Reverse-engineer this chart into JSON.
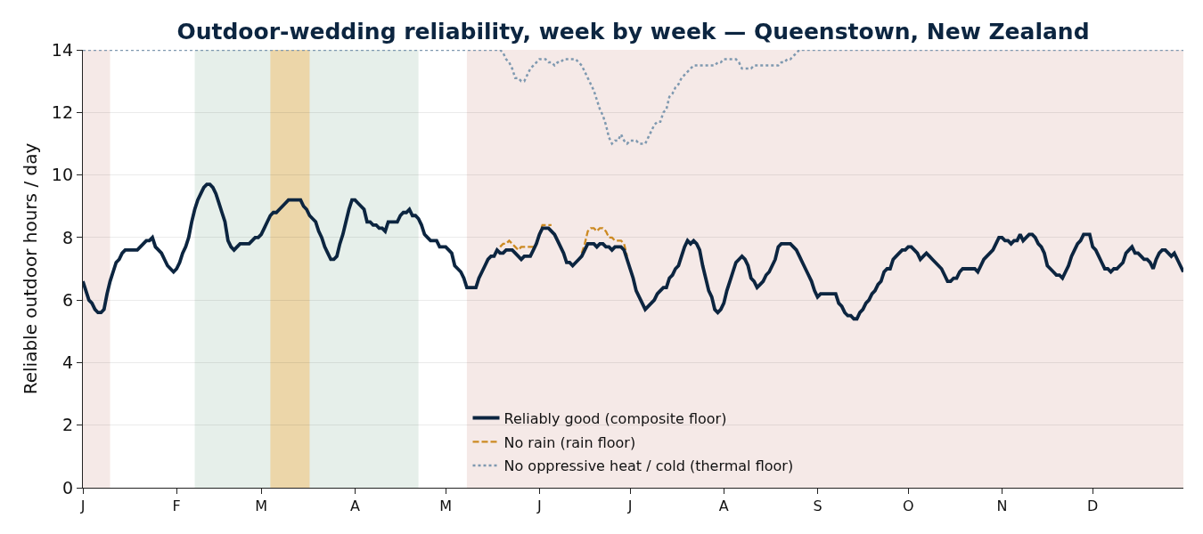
{
  "chart_data": {
    "type": "line",
    "title": "Outdoor-wedding reliability, week by week — Queenstown, New Zealand",
    "ylabel": "Reliable outdoor hours / day",
    "categories": [
      "J",
      null,
      null,
      null,
      null,
      null,
      null,
      null,
      null,
      null,
      null,
      null,
      null,
      null,
      null,
      null,
      null,
      null,
      null,
      null,
      null,
      null,
      null,
      null,
      null,
      null,
      null,
      null,
      null,
      null,
      null,
      "F",
      null,
      null,
      null,
      null,
      null,
      null,
      null,
      null,
      null,
      null,
      null,
      null,
      null,
      null,
      null,
      null,
      null,
      null,
      null,
      null,
      null,
      null,
      null,
      null,
      null,
      null,
      null,
      "M",
      null,
      null,
      null,
      null,
      null,
      null,
      null,
      null,
      null,
      null,
      null,
      null,
      null,
      null,
      null,
      null,
      null,
      null,
      null,
      null,
      null,
      null,
      null,
      null,
      null,
      null,
      null,
      null,
      null,
      null,
      "A",
      null,
      null,
      null,
      null,
      null,
      null,
      null,
      null,
      null,
      null,
      null,
      null,
      null,
      null,
      null,
      null,
      null,
      null,
      null,
      null,
      null,
      null,
      null,
      null,
      null,
      null,
      null,
      null,
      null,
      "M",
      null,
      null,
      null,
      null,
      null,
      null,
      null,
      null,
      null,
      null,
      null,
      null,
      null,
      null,
      null,
      null,
      null,
      null,
      null,
      null,
      null,
      null,
      null,
      null,
      null,
      null,
      null,
      null,
      null,
      null,
      "J",
      null,
      null,
      null,
      null,
      null,
      null,
      null,
      null,
      null,
      null,
      null,
      null,
      null,
      null,
      null,
      null,
      null,
      null,
      null,
      null,
      null,
      null,
      null,
      null,
      null,
      null,
      null,
      null,
      null,
      "J",
      null,
      null,
      null,
      null,
      null,
      null,
      null,
      null,
      null,
      null,
      null,
      null,
      null,
      null,
      null,
      null,
      null,
      null,
      null,
      null,
      null,
      null,
      null,
      null,
      null,
      null,
      null,
      null,
      null,
      null,
      "A",
      null,
      null,
      null,
      null,
      null,
      null,
      null,
      null,
      null,
      null,
      null,
      null,
      null,
      null,
      null,
      null,
      null,
      null,
      null,
      null,
      null,
      null,
      null,
      null,
      null,
      null,
      null,
      null,
      null,
      null,
      "S",
      null,
      null,
      null,
      null,
      null,
      null,
      null,
      null,
      null,
      null,
      null,
      null,
      null,
      null,
      null,
      null,
      null,
      null,
      null,
      null,
      null,
      null,
      null,
      null,
      null,
      null,
      null,
      null,
      null,
      "O",
      null,
      null,
      null,
      null,
      null,
      null,
      null,
      null,
      null,
      null,
      null,
      null,
      null,
      null,
      null,
      null,
      null,
      null,
      null,
      null,
      null,
      null,
      null,
      null,
      null,
      null,
      null,
      null,
      null,
      null,
      "N",
      null,
      null,
      null,
      null,
      null,
      null,
      null,
      null,
      null,
      null,
      null,
      null,
      null,
      null,
      null,
      null,
      null,
      null,
      null,
      null,
      null,
      null,
      null,
      null,
      null,
      null,
      null,
      null,
      null,
      "D",
      null,
      null,
      null,
      null,
      null,
      null,
      null,
      null,
      null,
      null,
      null,
      null,
      null,
      null,
      null,
      null,
      null,
      null,
      null,
      null,
      null,
      null,
      null,
      null,
      null,
      null,
      null,
      null,
      null,
      null
    ],
    "ylim": [
      0,
      14
    ],
    "yticks": [
      0,
      2,
      4,
      6,
      8,
      10,
      12,
      14
    ],
    "grid": "y",
    "legend": "bottom",
    "series": [
      {
        "name": "Reliably good (composite floor)",
        "color": "#0c2540",
        "line_style": "solid",
        "values": [
          6.6,
          6.3,
          6.0,
          5.9,
          5.7,
          5.6,
          5.6,
          5.7,
          6.2,
          6.6,
          6.9,
          7.2,
          7.3,
          7.5,
          7.6,
          7.6,
          7.6,
          7.6,
          7.6,
          7.7,
          7.8,
          7.9,
          7.9,
          8.0,
          7.7,
          7.6,
          7.5,
          7.3,
          7.1,
          7.0,
          6.9,
          7.0,
          7.2,
          7.5,
          7.7,
          8.0,
          8.5,
          8.9,
          9.2,
          9.4,
          9.6,
          9.7,
          9.7,
          9.6,
          9.4,
          9.1,
          8.8,
          8.5,
          7.9,
          7.7,
          7.6,
          7.7,
          7.8,
          7.8,
          7.8,
          7.8,
          7.9,
          8.0,
          8.0,
          8.1,
          8.3,
          8.5,
          8.7,
          8.8,
          8.8,
          8.9,
          9.0,
          9.1,
          9.2,
          9.2,
          9.2,
          9.2,
          9.2,
          9.0,
          8.9,
          8.7,
          8.6,
          8.5,
          8.2,
          8.0,
          7.7,
          7.5,
          7.3,
          7.3,
          7.4,
          7.8,
          8.1,
          8.5,
          8.9,
          9.2,
          9.2,
          9.1,
          9.0,
          8.9,
          8.5,
          8.5,
          8.4,
          8.4,
          8.3,
          8.3,
          8.2,
          8.5,
          8.5,
          8.5,
          8.5,
          8.7,
          8.8,
          8.8,
          8.9,
          8.7,
          8.7,
          8.6,
          8.4,
          8.1,
          8.0,
          7.9,
          7.9,
          7.9,
          7.7,
          7.7,
          7.7,
          7.6,
          7.5,
          7.1,
          7.0,
          6.9,
          6.7,
          6.4,
          6.4,
          6.4,
          6.4,
          6.7,
          6.9,
          7.1,
          7.3,
          7.4,
          7.4,
          7.6,
          7.5,
          7.5,
          7.6,
          7.6,
          7.6,
          7.5,
          7.4,
          7.3,
          7.4,
          7.4,
          7.4,
          7.6,
          7.8,
          8.1,
          8.3,
          8.3,
          8.3,
          8.2,
          8.1,
          7.9,
          7.7,
          7.5,
          7.2,
          7.2,
          7.1,
          7.2,
          7.3,
          7.4,
          7.6,
          7.8,
          7.8,
          7.8,
          7.7,
          7.8,
          7.8,
          7.7,
          7.7,
          7.6,
          7.7,
          7.7,
          7.7,
          7.6,
          7.3,
          7.0,
          6.7,
          6.3,
          6.1,
          5.9,
          5.7,
          5.8,
          5.9,
          6.0,
          6.2,
          6.3,
          6.4,
          6.4,
          6.7,
          6.8,
          7.0,
          7.1,
          7.4,
          7.7,
          7.9,
          7.8,
          7.9,
          7.8,
          7.6,
          7.1,
          6.7,
          6.3,
          6.1,
          5.7,
          5.6,
          5.7,
          5.9,
          6.3,
          6.6,
          6.9,
          7.2,
          7.3,
          7.4,
          7.3,
          7.1,
          6.7,
          6.6,
          6.4,
          6.5,
          6.6,
          6.8,
          6.9,
          7.1,
          7.3,
          7.7,
          7.8,
          7.8,
          7.8,
          7.8,
          7.7,
          7.6,
          7.4,
          7.2,
          7.0,
          6.8,
          6.6,
          6.3,
          6.1,
          6.2,
          6.2,
          6.2,
          6.2,
          6.2,
          6.2,
          5.9,
          5.8,
          5.6,
          5.5,
          5.5,
          5.4,
          5.4,
          5.6,
          5.7,
          5.9,
          6.0,
          6.2,
          6.3,
          6.5,
          6.6,
          6.9,
          7.0,
          7.0,
          7.3,
          7.4,
          7.5,
          7.6,
          7.6,
          7.7,
          7.7,
          7.6,
          7.5,
          7.3,
          7.4,
          7.5,
          7.4,
          7.3,
          7.2,
          7.1,
          7.0,
          6.8,
          6.6,
          6.6,
          6.7,
          6.7,
          6.9,
          7.0,
          7.0,
          7.0,
          7.0,
          7.0,
          6.9,
          7.1,
          7.3,
          7.4,
          7.5,
          7.6,
          7.8,
          8.0,
          8.0,
          7.9,
          7.9,
          7.8,
          7.9,
          7.9,
          8.1,
          7.9,
          8.0,
          8.1,
          8.1,
          8.0,
          7.8,
          7.7,
          7.5,
          7.1,
          7.0,
          6.9,
          6.8,
          6.8,
          6.7,
          6.9,
          7.1,
          7.4,
          7.6,
          7.8,
          7.9,
          8.1,
          8.1,
          8.1,
          7.7,
          7.6,
          7.4,
          7.2,
          7.0,
          7.0,
          6.9,
          7.0,
          7.0,
          7.1,
          7.2,
          7.5,
          7.6,
          7.7,
          7.5,
          7.5,
          7.4,
          7.3,
          7.3,
          7.2,
          7.0,
          7.3,
          7.5,
          7.6,
          7.6,
          7.5,
          7.4,
          7.5,
          7.3,
          7.1,
          6.9
        ]
      },
      {
        "name": "No rain (rain floor)",
        "color": "#cc8a22",
        "line_style": "dashed",
        "values": [
          null,
          null,
          null,
          null,
          null,
          null,
          null,
          null,
          null,
          null,
          null,
          null,
          null,
          null,
          null,
          null,
          null,
          null,
          null,
          null,
          null,
          null,
          null,
          null,
          null,
          null,
          null,
          null,
          null,
          null,
          null,
          null,
          null,
          null,
          null,
          null,
          null,
          null,
          null,
          null,
          null,
          null,
          null,
          null,
          null,
          null,
          null,
          null,
          null,
          null,
          null,
          null,
          null,
          null,
          null,
          null,
          null,
          null,
          null,
          null,
          null,
          null,
          null,
          null,
          null,
          null,
          null,
          null,
          null,
          null,
          null,
          null,
          null,
          null,
          null,
          null,
          null,
          null,
          null,
          null,
          null,
          null,
          null,
          null,
          null,
          null,
          null,
          null,
          null,
          null,
          null,
          null,
          null,
          null,
          null,
          null,
          null,
          null,
          null,
          null,
          null,
          null,
          null,
          null,
          null,
          null,
          null,
          null,
          null,
          null,
          null,
          null,
          null,
          null,
          null,
          null,
          null,
          null,
          null,
          null,
          null,
          null,
          null,
          null,
          null,
          null,
          null,
          null,
          null,
          null,
          null,
          null,
          null,
          null,
          null,
          null,
          null,
          null,
          7.7,
          7.8,
          7.8,
          7.9,
          7.8,
          7.7,
          7.6,
          7.7,
          7.7,
          7.7,
          7.7,
          7.7,
          7.8,
          8.1,
          8.4,
          8.4,
          8.4,
          8.4,
          null,
          null,
          null,
          null,
          null,
          null,
          null,
          null,
          null,
          7.5,
          7.8,
          8.2,
          8.3,
          8.3,
          8.2,
          8.3,
          8.3,
          8.2,
          8.0,
          8.0,
          7.9,
          7.9,
          7.9,
          7.8,
          7.4,
          null,
          null,
          null,
          null,
          null,
          null,
          null,
          null,
          null,
          null,
          null,
          null,
          null,
          null,
          null,
          null,
          null,
          null,
          null,
          null,
          null,
          null,
          null,
          null,
          null,
          null,
          null,
          null,
          null,
          null,
          null,
          null,
          null,
          null,
          null,
          null,
          null,
          null,
          null,
          null,
          null,
          null,
          null,
          null,
          null,
          null,
          null,
          null,
          null,
          null,
          null,
          null,
          null,
          null,
          null,
          null,
          null,
          null,
          null,
          null,
          null,
          null,
          null,
          null,
          null,
          null,
          null,
          null,
          null,
          null,
          null,
          null,
          null,
          null,
          null,
          null,
          null,
          null,
          null,
          null,
          null,
          null,
          null,
          null,
          null,
          null,
          null,
          null,
          null,
          null,
          null,
          null,
          null,
          null,
          null,
          null,
          null,
          null,
          null,
          null,
          null,
          null,
          null,
          null,
          null,
          null,
          null,
          null,
          null,
          null,
          null,
          null,
          null,
          null,
          null,
          null,
          null,
          null,
          null,
          null,
          null,
          null,
          null,
          null,
          null,
          null,
          null,
          null,
          null,
          null,
          null,
          null,
          null,
          null,
          null,
          null,
          null,
          null,
          null,
          null,
          null,
          null,
          null,
          null,
          null,
          null,
          null,
          null,
          null,
          null,
          null,
          null,
          null,
          null,
          null,
          null,
          null,
          null,
          null,
          null,
          null,
          null,
          null,
          null,
          null,
          null,
          null,
          null,
          null,
          null,
          null,
          null,
          null,
          null,
          null,
          null,
          null,
          null,
          null,
          null,
          null,
          null,
          null,
          null
        ]
      },
      {
        "name": "No oppressive heat / cold (thermal floor)",
        "color": "#7f99b0",
        "line_style": "dotted",
        "values": [
          14,
          14,
          14,
          14,
          14,
          14,
          14,
          14,
          14,
          14,
          14,
          14,
          14,
          14,
          14,
          14,
          14,
          14,
          14,
          14,
          14,
          14,
          14,
          14,
          14,
          14,
          14,
          14,
          14,
          14,
          14,
          14,
          14,
          14,
          14,
          14,
          14,
          14,
          14,
          14,
          14,
          14,
          14,
          14,
          14,
          14,
          14,
          14,
          14,
          14,
          14,
          14,
          14,
          14,
          14,
          14,
          14,
          14,
          14,
          14,
          14,
          14,
          14,
          14,
          14,
          14,
          14,
          14,
          14,
          14,
          14,
          14,
          14,
          14,
          14,
          14,
          14,
          14,
          14,
          14,
          14,
          14,
          14,
          14,
          14,
          14,
          14,
          14,
          14,
          14,
          14,
          14,
          14,
          14,
          14,
          14,
          14,
          14,
          14,
          14,
          14,
          14,
          14,
          14,
          14,
          14,
          14,
          14,
          14,
          14,
          14,
          14,
          14,
          14,
          14,
          14,
          14,
          14,
          14,
          14,
          14,
          14,
          14,
          14,
          14,
          14,
          14,
          14,
          14,
          14,
          14,
          14,
          14,
          14,
          14,
          14,
          14,
          14,
          14,
          13.9,
          13.7,
          13.6,
          13.4,
          13.1,
          13.1,
          13.0,
          13.0,
          13.2,
          13.4,
          13.5,
          13.6,
          13.7,
          13.7,
          13.7,
          13.6,
          13.6,
          13.5,
          13.6,
          13.6,
          13.7,
          13.7,
          13.7,
          13.7,
          13.7,
          13.6,
          13.5,
          13.3,
          13.1,
          12.9,
          12.7,
          12.4,
          12.1,
          11.9,
          11.6,
          11.2,
          11.0,
          11.1,
          11.1,
          11.3,
          11.1,
          11.0,
          11.1,
          11.1,
          11.1,
          11.0,
          11.0,
          11.0,
          11.2,
          11.4,
          11.6,
          11.7,
          11.7,
          12.0,
          12.1,
          12.5,
          12.6,
          12.8,
          12.9,
          13.1,
          13.2,
          13.3,
          13.4,
          13.5,
          13.5,
          13.5,
          13.5,
          13.5,
          13.5,
          13.5,
          13.5,
          13.6,
          13.6,
          13.7,
          13.7,
          13.7,
          13.7,
          13.7,
          13.6,
          13.4,
          13.4,
          13.4,
          13.4,
          13.5,
          13.5,
          13.5,
          13.5,
          13.5,
          13.5,
          13.5,
          13.5,
          13.5,
          13.6,
          13.6,
          13.7,
          13.7,
          13.8,
          13.9,
          14,
          14,
          14,
          14,
          14,
          14,
          14,
          14,
          14,
          14,
          14,
          14,
          14,
          14,
          14,
          14,
          14,
          14,
          14,
          14,
          14,
          14,
          14,
          14,
          14,
          14,
          14,
          14,
          14,
          14,
          14,
          14,
          14,
          14,
          14,
          14,
          14,
          14,
          14,
          14,
          14,
          14,
          14,
          14,
          14,
          14,
          14,
          14,
          14,
          14,
          14,
          14,
          14,
          14,
          14,
          14,
          14,
          14,
          14,
          14,
          14,
          14,
          14,
          14,
          14,
          14,
          14,
          14,
          14,
          14,
          14,
          14,
          14,
          14,
          14,
          14,
          14,
          14,
          14,
          14,
          14,
          14,
          14,
          14,
          14,
          14,
          14,
          14,
          14,
          14,
          14,
          14,
          14,
          14,
          14,
          14,
          14,
          14,
          14,
          14,
          14,
          14,
          14,
          14,
          14,
          14,
          14,
          14,
          14,
          14,
          14,
          14,
          14,
          14,
          14,
          14,
          14,
          14,
          14,
          14,
          14,
          14,
          14,
          14,
          14,
          14,
          14,
          14
        ]
      }
    ]
  }
}
